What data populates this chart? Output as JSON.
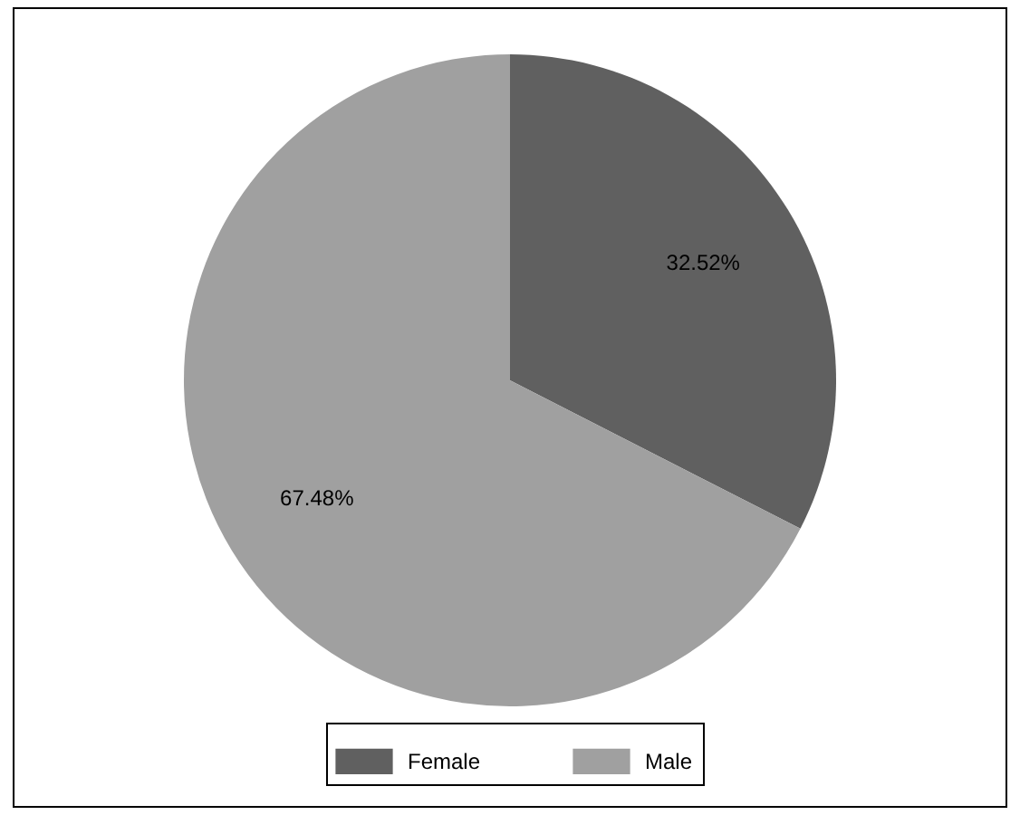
{
  "chart_data": {
    "type": "pie",
    "categories": [
      "Female",
      "Male"
    ],
    "values": [
      32.52,
      67.48
    ],
    "colors": [
      "#606060",
      "#a0a0a0"
    ],
    "value_labels": [
      "32.52%",
      "67.48%"
    ],
    "legend": "bottom"
  }
}
